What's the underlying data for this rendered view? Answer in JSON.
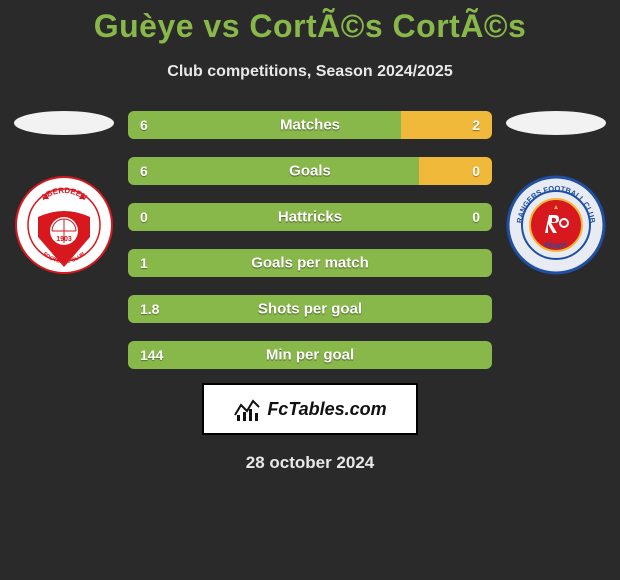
{
  "title": "Guèye vs CortÃ©s CortÃ©s",
  "subtitle": "Club competitions, Season 2024/2025",
  "date": "28 october 2024",
  "logo_text": "FcTables.com",
  "colors": {
    "background": "#2a2a2a",
    "title": "#89b84a",
    "subtitle": "#e8e8e8",
    "left_bar": "#89b84a",
    "right_bar": "#f0b93a",
    "bar_text": "#ffffff",
    "shadow": "#f2f2f2",
    "logo_bg": "#ffffff",
    "logo_border": "#000000"
  },
  "stats": [
    {
      "label": "Matches",
      "left_val": "6",
      "right_val": "2",
      "left_pct": 75,
      "right_pct": 25
    },
    {
      "label": "Goals",
      "left_val": "6",
      "right_val": "0",
      "left_pct": 80,
      "right_pct": 20
    },
    {
      "label": "Hattricks",
      "left_val": "0",
      "right_val": "0",
      "left_pct": 100,
      "right_pct": 0
    },
    {
      "label": "Goals per match",
      "left_val": "1",
      "right_val": "",
      "left_pct": 100,
      "right_pct": 0
    },
    {
      "label": "Shots per goal",
      "left_val": "1.8",
      "right_val": "",
      "left_pct": 100,
      "right_pct": 0
    },
    {
      "label": "Min per goal",
      "left_val": "144",
      "right_val": "",
      "left_pct": 100,
      "right_pct": 0
    }
  ],
  "crest_left": {
    "bg": "#ffffff",
    "accent": "#d8181f",
    "text": "#d8181f",
    "label": "ABERDEEN",
    "sub": "FOOTBALL CLUB",
    "year": "1903"
  },
  "crest_right": {
    "bg": "#ffffff",
    "ring": "#1f4fa3",
    "accent": "#d8181f",
    "label": "RANGERS",
    "sub": "FOOTBALL CLUB",
    "ready": "READY"
  }
}
